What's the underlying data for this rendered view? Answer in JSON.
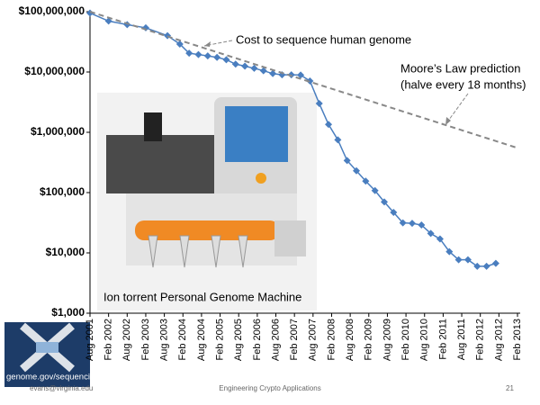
{
  "chart_data": {
    "type": "line",
    "annotations": [
      "(halve every 18 months)"
    ],
    "log_y": true,
    "ylim": [
      1000,
      100000000
    ],
    "yticks": [
      {
        "value": 1000,
        "label": "$1,000"
      },
      {
        "value": 10000,
        "label": "$10,000"
      },
      {
        "value": 100000,
        "label": "$100,000"
      },
      {
        "value": 1000000,
        "label": "$1,000,000"
      },
      {
        "value": 10000000,
        "label": "$10,000,000"
      },
      {
        "value": 100000000,
        "label": "$100,000,000"
      }
    ],
    "xlim": [
      "Aug 2001",
      "Feb 2013"
    ],
    "xticks": [
      "Aug 2001",
      "Feb 2002",
      "Aug 2002",
      "Feb 2003",
      "Aug 2003",
      "Feb 2004",
      "Aug 2004",
      "Feb 2005",
      "Aug 2005",
      "Feb 2006",
      "Aug 2006",
      "Feb 2007",
      "Aug 2007",
      "Feb 2008",
      "Aug 2008",
      "Feb 2009",
      "Aug 2009",
      "Feb 2010",
      "Aug 2010",
      "Feb 2011",
      "Aug 2011",
      "Feb 2012",
      "Aug 2012",
      "Feb 2013"
    ],
    "series": [
      {
        "name": "Cost to sequence human genome",
        "color": "#4a7ebf",
        "markers": true,
        "dashed": false,
        "x": [
          "Aug 2001",
          "Feb 2002",
          "Aug 2002",
          "Feb 2003",
          "Sep 2003",
          "Jan 2004",
          "Apr 2004",
          "Jul 2004",
          "Oct 2004",
          "Jan 2005",
          "Apr 2005",
          "Jul 2005",
          "Oct 2005",
          "Jan 2006",
          "Apr 2006",
          "Jul 2006",
          "Oct 2006",
          "Jan 2007",
          "Apr 2007",
          "Jul 2007",
          "Oct 2007",
          "Jan 2008",
          "Apr 2008",
          "Jul 2008",
          "Oct 2008",
          "Jan 2009",
          "Apr 2009",
          "Jul 2009",
          "Oct 2009",
          "Jan 2010",
          "Apr 2010",
          "Jul 2010",
          "Oct 2010",
          "Jan 2011",
          "Apr 2011",
          "Jul 2011",
          "Oct 2011",
          "Jan 2012",
          "Apr 2012",
          "Jul 2012"
        ],
        "values": [
          95000000,
          70000000,
          61000000,
          54000000,
          40000000,
          29000000,
          20500000,
          19500000,
          18500000,
          17500000,
          16000000,
          13500000,
          12500000,
          11500000,
          10500000,
          9400000,
          9000000,
          9000000,
          8900000,
          7100000,
          3000000,
          1350000,
          750000,
          340000,
          230000,
          155000,
          108000,
          70000,
          47000,
          31500,
          31000,
          29000,
          21000,
          17000,
          10500,
          7700,
          7700,
          6000,
          6000,
          6700
        ]
      },
      {
        "name": "Moore’s Law prediction",
        "color": "#888888",
        "markers": false,
        "dashed": true,
        "x": [
          "Aug 2001",
          "Feb 2013"
        ],
        "values": [
          100000000,
          550000
        ]
      }
    ]
  },
  "photo_caption": "Ion torrent Personal Genome Machine",
  "logo_text": "genome.gov/sequencingcosts",
  "footer": {
    "author": "evans@virginia.edu",
    "course": "Engineering Crypto Applications",
    "page": "21"
  }
}
